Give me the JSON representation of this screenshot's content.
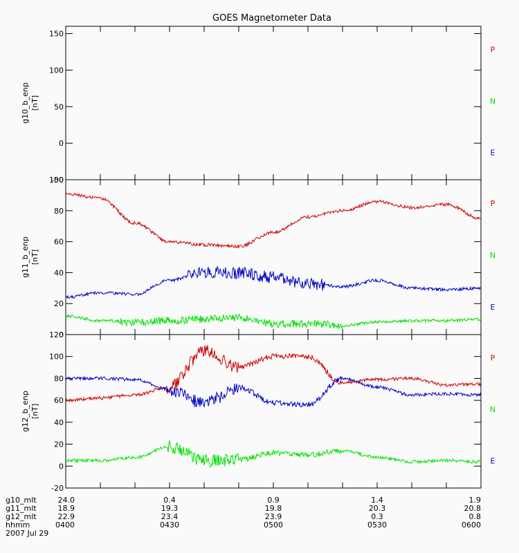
{
  "title": "GOES Magnetometer Data",
  "chart_data": [
    {
      "type": "line",
      "ylabel": "g10_b_enp",
      "unit": "[nT]",
      "ylim": [
        -50,
        160
      ],
      "yticks": [
        -50,
        0,
        50,
        100,
        150
      ],
      "legend": [
        "P",
        "N",
        "E"
      ],
      "series": []
    },
    {
      "type": "line",
      "ylabel": "g11_b_enp",
      "unit": "[nT]",
      "ylim": [
        0,
        100
      ],
      "yticks": [
        0,
        20,
        40,
        60,
        80,
        100
      ],
      "legend": [
        "P",
        "N",
        "E"
      ],
      "x": [
        0,
        10,
        20,
        30,
        40,
        50,
        60,
        70,
        80,
        90,
        100,
        110,
        120
      ],
      "series": [
        {
          "name": "P",
          "values": [
            91,
            88,
            72,
            60,
            58,
            57,
            66,
            76,
            80,
            86,
            82,
            84,
            75
          ]
        },
        {
          "name": "E",
          "values": [
            24,
            27,
            26,
            35,
            40,
            40,
            37,
            33,
            31,
            35,
            30,
            29,
            30
          ]
        },
        {
          "name": "N",
          "values": [
            12,
            9,
            8,
            9,
            10,
            11,
            7,
            7,
            6,
            8,
            9,
            9,
            10
          ]
        }
      ]
    },
    {
      "type": "line",
      "ylabel": "g12_b_enp",
      "unit": "[nT]",
      "ylim": [
        -20,
        120
      ],
      "yticks": [
        -20,
        0,
        20,
        40,
        60,
        80,
        100,
        120
      ],
      "legend": [
        "P",
        "N",
        "E"
      ],
      "x": [
        0,
        10,
        20,
        30,
        40,
        50,
        60,
        70,
        80,
        90,
        100,
        110,
        120
      ],
      "series": [
        {
          "name": "P",
          "values": [
            60,
            62,
            65,
            72,
            105,
            90,
            100,
            100,
            76,
            79,
            80,
            74,
            75
          ]
        },
        {
          "name": "E",
          "values": [
            80,
            80,
            79,
            70,
            57,
            72,
            58,
            56,
            80,
            72,
            65,
            66,
            65
          ]
        },
        {
          "name": "N",
          "values": [
            5,
            5,
            8,
            18,
            5,
            6,
            12,
            10,
            14,
            8,
            4,
            5,
            4
          ]
        }
      ]
    }
  ],
  "colors": {
    "P": "#cc0000",
    "N": "#00e000",
    "E": "#0000c8"
  },
  "bottom_rows": {
    "labels": [
      "g10_mlt",
      "g11_mlt",
      "g12_mlt",
      "hhmm"
    ],
    "columns": [
      [
        "24.0",
        "18.9",
        "22.9",
        "0400"
      ],
      [
        "0.4",
        "19.3",
        "23.4",
        "0430"
      ],
      [
        "0.9",
        "19.8",
        "23.9",
        "0500"
      ],
      [
        "1.4",
        "20.3",
        "0.3",
        "0530"
      ],
      [
        "1.9",
        "20.8",
        "0.8",
        "0600"
      ]
    ],
    "date": "2007 Jul 29"
  }
}
